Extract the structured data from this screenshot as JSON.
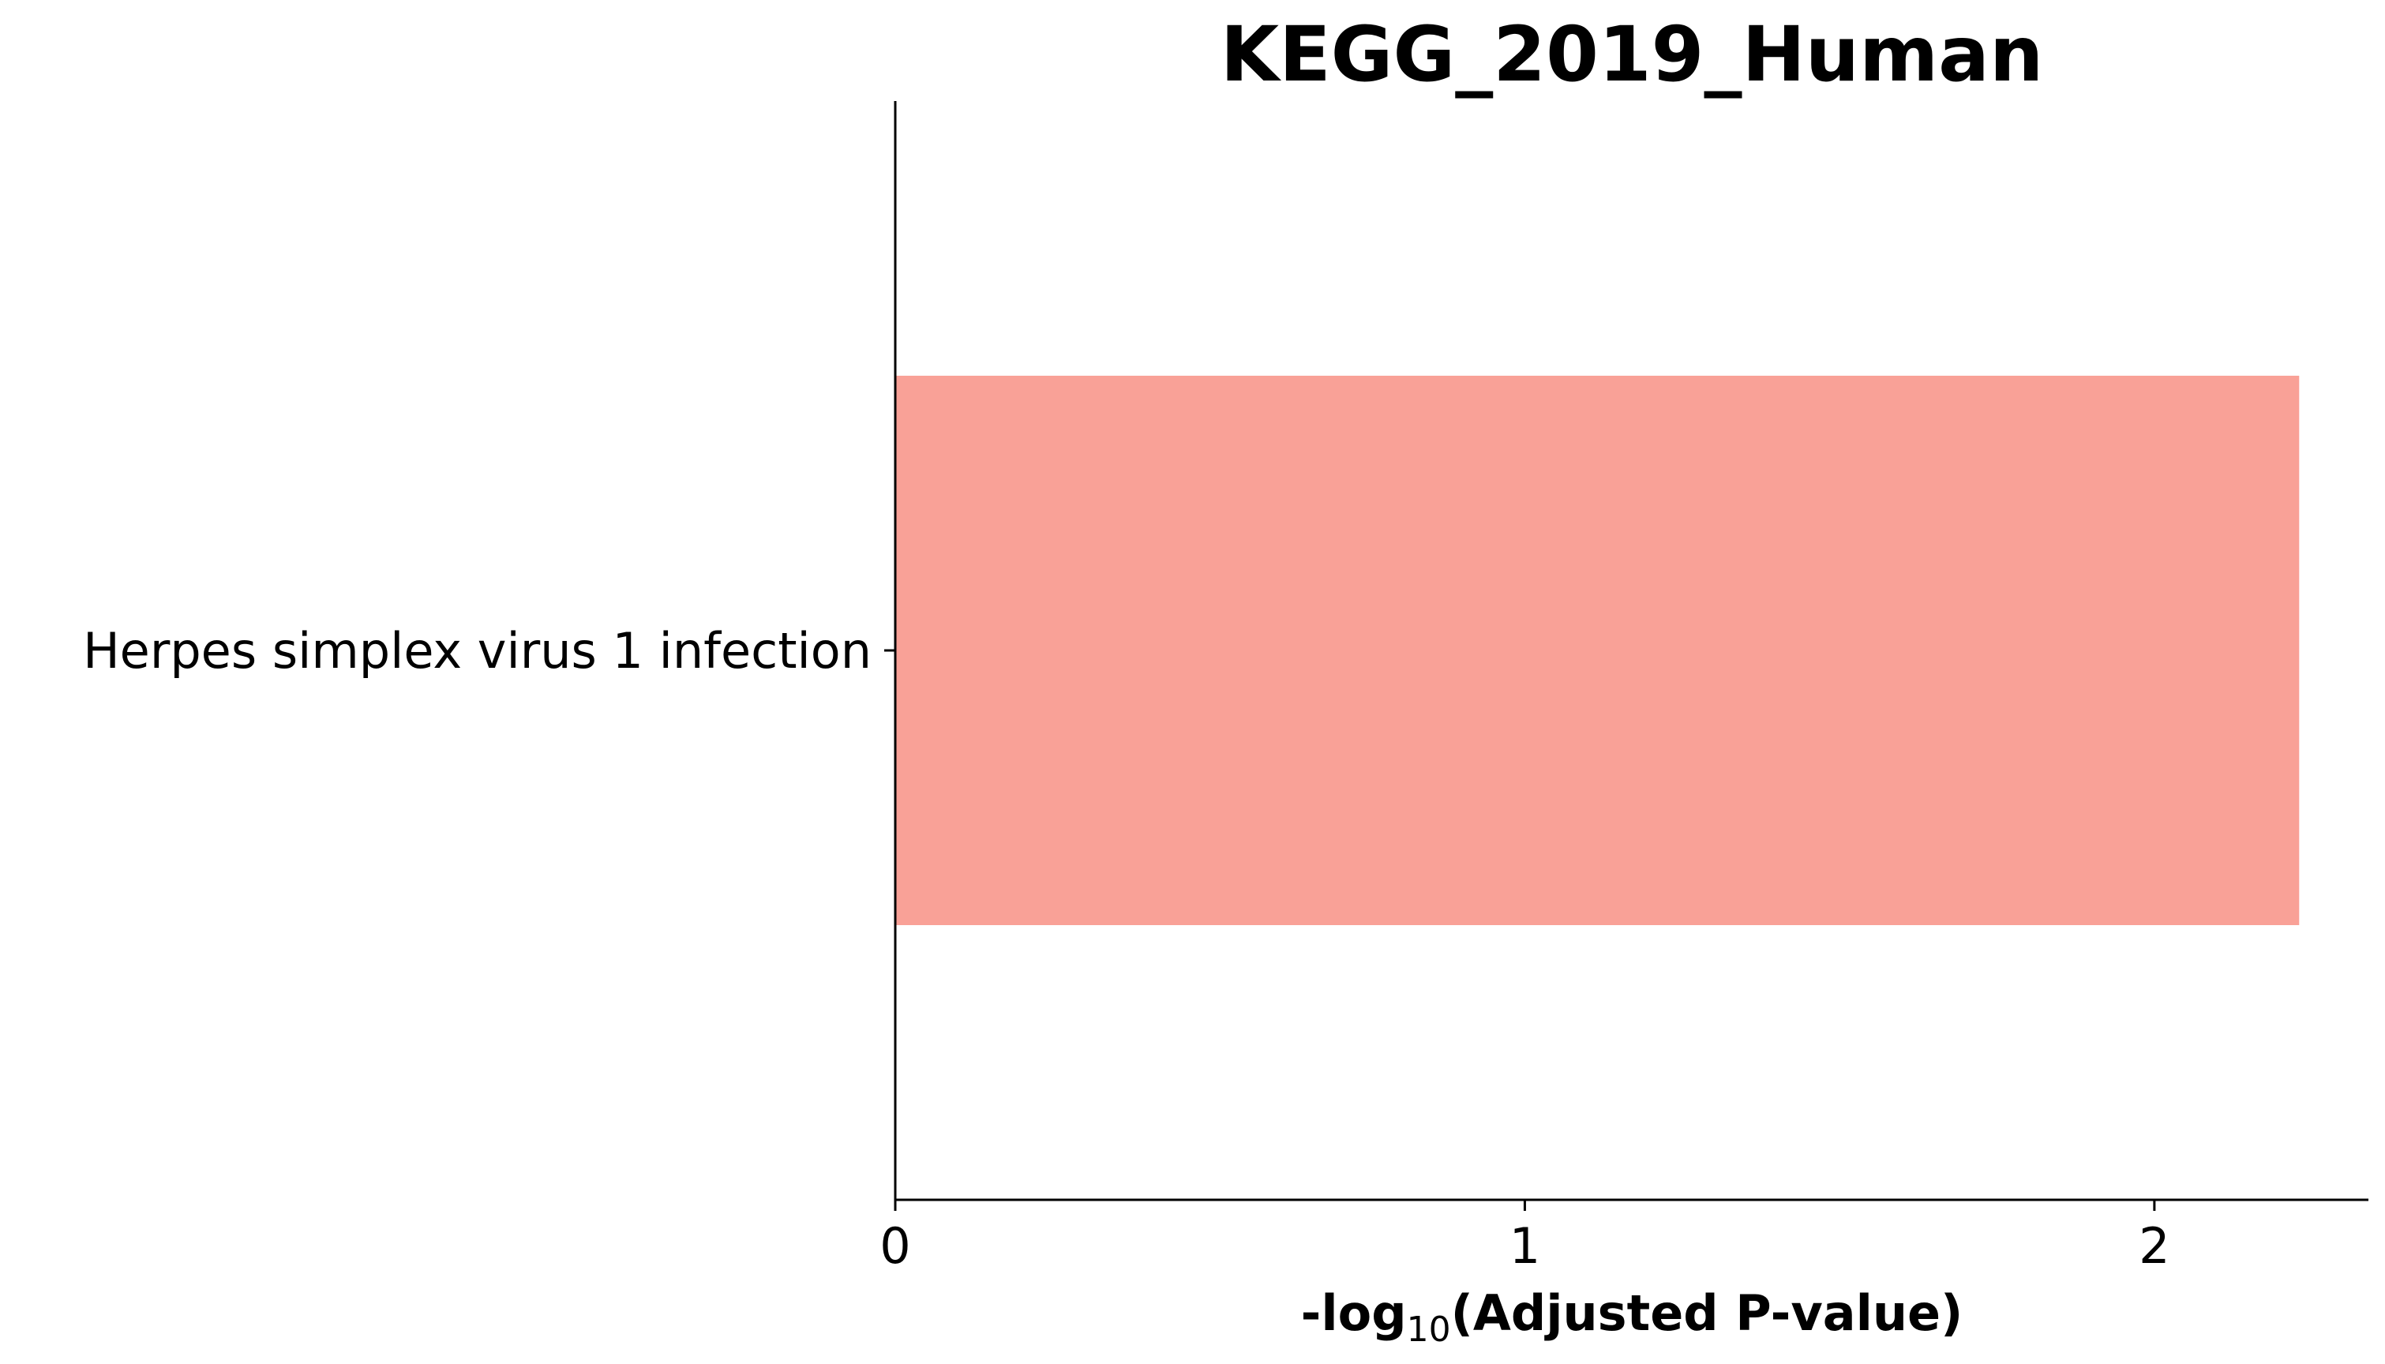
{
  "chart_data": {
    "type": "bar",
    "orientation": "horizontal",
    "title": "KEGG_2019_Human",
    "categories": [
      "Herpes simplex virus 1 infection"
    ],
    "values": [
      2.23
    ],
    "xlabel": {
      "prefix": "-log",
      "subscript": "10",
      "suffix": "(Adjusted P-value)"
    },
    "ylabel": "",
    "xlim": [
      0,
      2.34
    ],
    "xticks": [
      0,
      1,
      2
    ],
    "xtick_labels": [
      "0",
      "1",
      "2"
    ],
    "bar_color": "#f9a197",
    "grid": false,
    "legend": "none"
  }
}
